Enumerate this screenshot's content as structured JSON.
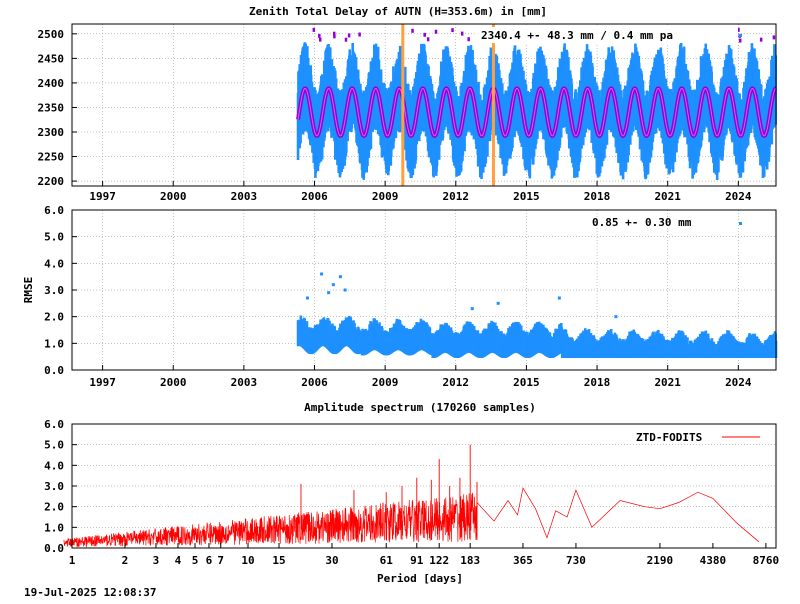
{
  "stamp": "19-Jul-2025 12:08:37",
  "chart_data": [
    {
      "type": "scatter",
      "title": "Zenith Total Delay of AUTN (H=353.6m) in [mm]",
      "ylabel": "",
      "annotation": "2340.4 +-  48.3 mm /  0.4 mm pa",
      "xlim": [
        1995.7,
        2025.6
      ],
      "ylim": [
        2190,
        2520
      ],
      "x_ticks": [
        "1997",
        "2000",
        "2003",
        "2006",
        "2009",
        "2012",
        "2015",
        "2018",
        "2021",
        "2024"
      ],
      "y_ticks": [
        "2200",
        "2250",
        "2300",
        "2350",
        "2400",
        "2450",
        "2500"
      ],
      "grid": true,
      "data_start": 2005.3,
      "data_end": 2025.6,
      "mean": 2340.4,
      "seasonal_amplitude": 48.3,
      "trend_mm_per_year": 0.4,
      "break_lines": [
        2009.75,
        2013.6
      ],
      "colors": {
        "obs": "#1e90ff",
        "model": "#9400d3",
        "breaks": "#ffa040"
      }
    },
    {
      "type": "scatter",
      "title": "",
      "ylabel": "RMSE",
      "annotation": "0.85 +-  0.30 mm",
      "xlim": [
        1995.7,
        2025.6
      ],
      "ylim": [
        0,
        6
      ],
      "x_ticks": [
        "1997",
        "2000",
        "2003",
        "2006",
        "2009",
        "2012",
        "2015",
        "2018",
        "2021",
        "2024"
      ],
      "y_ticks": [
        "0.0",
        "1.0",
        "2.0",
        "3.0",
        "4.0",
        "5.0",
        "6.0"
      ],
      "grid": true,
      "outliers": [
        {
          "x": 2006.3,
          "y": 3.6
        },
        {
          "x": 2006.8,
          "y": 3.2
        },
        {
          "x": 2007.1,
          "y": 3.5
        },
        {
          "x": 2006.6,
          "y": 2.9
        },
        {
          "x": 2007.3,
          "y": 3.0
        },
        {
          "x": 2016.4,
          "y": 2.7
        },
        {
          "x": 2005.7,
          "y": 2.7
        },
        {
          "x": 2012.7,
          "y": 2.3
        },
        {
          "x": 2018.8,
          "y": 2.0
        },
        {
          "x": 2013.8,
          "y": 2.5
        }
      ],
      "colors": {
        "obs": "#1e90ff"
      }
    },
    {
      "type": "line",
      "title": "Amplitude spectrum (170260 samples)",
      "xlabel": "Period [days]",
      "ylim": [
        0,
        6
      ],
      "x_ticks": [
        "1",
        "2",
        "3",
        "4",
        "5",
        "6",
        "7",
        "10",
        "15",
        "30",
        "61",
        "91",
        "122",
        "183",
        "365",
        "730",
        "2190",
        "4380",
        "8760"
      ],
      "y_ticks": [
        "0.0",
        "1.0",
        "2.0",
        "3.0",
        "4.0",
        "5.0",
        "6.0"
      ],
      "series": [
        {
          "name": "ZTD-FODITS",
          "color": "#ff0000",
          "long_period": [
            {
              "x": 200,
              "y": 2.2
            },
            {
              "x": 250,
              "y": 1.3
            },
            {
              "x": 300,
              "y": 2.3
            },
            {
              "x": 340,
              "y": 1.6
            },
            {
              "x": 365,
              "y": 2.9
            },
            {
              "x": 430,
              "y": 1.9
            },
            {
              "x": 500,
              "y": 0.5
            },
            {
              "x": 560,
              "y": 1.8
            },
            {
              "x": 650,
              "y": 1.5
            },
            {
              "x": 730,
              "y": 2.8
            },
            {
              "x": 900,
              "y": 1.0
            },
            {
              "x": 1300,
              "y": 2.3
            },
            {
              "x": 1800,
              "y": 2.0
            },
            {
              "x": 2190,
              "y": 1.9
            },
            {
              "x": 2800,
              "y": 2.2
            },
            {
              "x": 3600,
              "y": 2.7
            },
            {
              "x": 4380,
              "y": 2.4
            },
            {
              "x": 6000,
              "y": 1.2
            },
            {
              "x": 8000,
              "y": 0.3
            }
          ],
          "peaks": [
            {
              "x": 183,
              "y": 5.0
            },
            {
              "x": 122,
              "y": 4.3
            },
            {
              "x": 91,
              "y": 3.4
            },
            {
              "x": 61,
              "y": 2.7
            },
            {
              "x": 160,
              "y": 3.4
            },
            {
              "x": 140,
              "y": 3.0
            },
            {
              "x": 200,
              "y": 3.2
            },
            {
              "x": 110,
              "y": 3.3
            },
            {
              "x": 75,
              "y": 3.0
            },
            {
              "x": 20,
              "y": 3.1
            },
            {
              "x": 40,
              "y": 2.8
            }
          ]
        }
      ],
      "legend": "top-right"
    }
  ]
}
